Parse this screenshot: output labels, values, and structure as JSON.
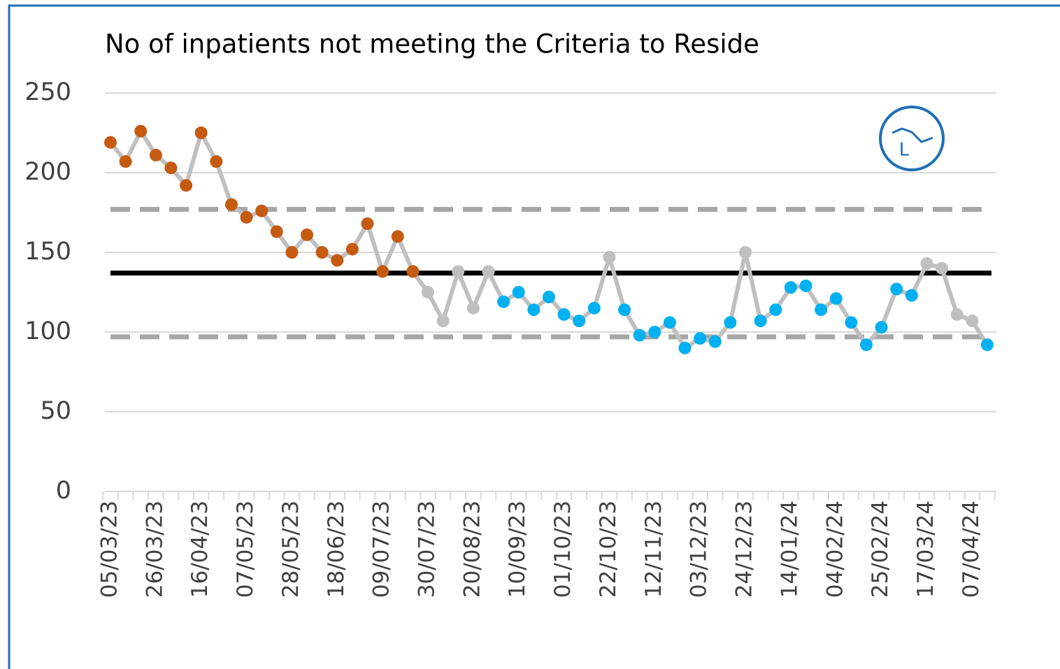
{
  "chart_data": {
    "type": "line",
    "title": "No of inpatients not meeting the Criteria to Reside",
    "icon_label": "L",
    "categories": [
      "05/03/23",
      null,
      null,
      "26/03/23",
      null,
      null,
      "16/04/23",
      null,
      null,
      "07/05/23",
      null,
      null,
      "28/05/23",
      null,
      null,
      "18/06/23",
      null,
      null,
      "09/07/23",
      null,
      null,
      "30/07/23",
      null,
      null,
      "20/08/23",
      null,
      null,
      "10/09/23",
      null,
      null,
      "01/10/23",
      null,
      null,
      "22/10/23",
      null,
      null,
      "12/11/23",
      null,
      null,
      "03/12/23",
      null,
      null,
      "24/12/23",
      null,
      null,
      "14/01/24",
      null,
      null,
      "04/02/24",
      null,
      null,
      "25/02/24",
      null,
      null,
      "17/03/24",
      null,
      null,
      "07/04/24",
      null
    ],
    "series": [
      {
        "color": "#bfbfbf",
        "values": [
          219,
          207,
          226,
          211,
          203,
          192,
          225,
          207,
          180,
          172,
          176,
          163,
          150,
          161,
          150,
          145,
          152,
          168,
          138,
          160,
          138,
          125,
          107,
          138,
          115,
          138,
          119,
          125,
          114,
          122,
          111,
          107,
          115,
          147,
          114,
          98,
          100,
          106,
          90,
          96,
          94,
          106,
          150,
          107,
          114,
          128,
          129,
          114,
          121,
          106,
          92,
          103,
          127,
          123,
          143,
          140,
          111,
          107,
          92
        ],
        "marker_colors": [
          "#c55a11",
          "#c55a11",
          "#c55a11",
          "#c55a11",
          "#c55a11",
          "#c55a11",
          "#c55a11",
          "#c55a11",
          "#c55a11",
          "#c55a11",
          "#c55a11",
          "#c55a11",
          "#c55a11",
          "#c55a11",
          "#c55a11",
          "#c55a11",
          "#c55a11",
          "#c55a11",
          "#c55a11",
          "#c55a11",
          "#c55a11",
          "#bfbfbf",
          "#bfbfbf",
          "#bfbfbf",
          "#bfbfbf",
          "#bfbfbf",
          "#00b0f0",
          "#00b0f0",
          "#00b0f0",
          "#00b0f0",
          "#00b0f0",
          "#00b0f0",
          "#00b0f0",
          "#bfbfbf",
          "#00b0f0",
          "#00b0f0",
          "#00b0f0",
          "#00b0f0",
          "#00b0f0",
          "#00b0f0",
          "#00b0f0",
          "#00b0f0",
          "#bfbfbf",
          "#00b0f0",
          "#00b0f0",
          "#00b0f0",
          "#00b0f0",
          "#00b0f0",
          "#00b0f0",
          "#00b0f0",
          "#00b0f0",
          "#00b0f0",
          "#00b0f0",
          "#00b0f0",
          "#bfbfbf",
          "#bfbfbf",
          "#bfbfbf",
          "#bfbfbf",
          "#00b0f0"
        ]
      }
    ],
    "reference_lines": [
      {
        "value": 177,
        "color": "#a6a6a6",
        "dashed": true
      },
      {
        "value": 137,
        "color": "#000000",
        "dashed": false
      },
      {
        "value": 97,
        "color": "#a6a6a6",
        "dashed": true
      }
    ],
    "ylim": [
      0,
      250
    ],
    "yticks": [
      0,
      50,
      100,
      150,
      200,
      250
    ],
    "grid": true
  }
}
